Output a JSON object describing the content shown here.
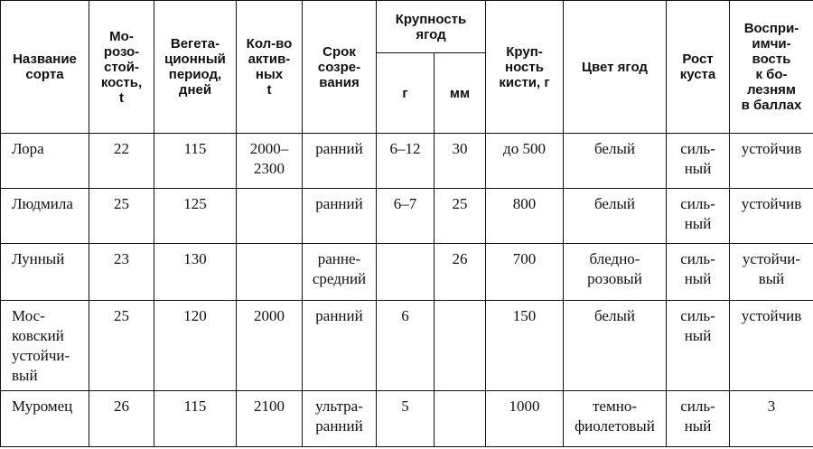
{
  "headers": {
    "name": "Название\nсорта",
    "frost": "Мо-\nрозо-\nстой-\nкость,\nt",
    "veg": "Вегета-\nционный\nпериод,\nдней",
    "active": "Кол-во\nактив-\nных\nt",
    "ripen": "Срок\nсозре-\nвания",
    "berry": "Крупность\nягод",
    "berry_g": "г",
    "berry_mm": "мм",
    "cluster": "Круп-\nность\nкисти, г",
    "color": "Цвет ягод",
    "growth": "Рост\nкуста",
    "disease": "Воспри-\nимчи-\nвость\nк бо-\nлезням\nв баллах"
  },
  "rows": [
    {
      "name": "Лора",
      "frost": "22",
      "veg": "115",
      "active": "2000–\n2300",
      "ripen": "ранний",
      "g": "6–12",
      "mm": "30",
      "cluster": "до 500",
      "color": "белый",
      "growth": "силь-\nный",
      "disease": "устойчив"
    },
    {
      "name": "Людмила",
      "frost": "25",
      "veg": "125",
      "active": "",
      "ripen": "ранний",
      "g": "6–7",
      "mm": "25",
      "cluster": "800",
      "color": "белый",
      "growth": "силь-\nный",
      "disease": "устойчив"
    },
    {
      "name": "Лунный",
      "frost": "23",
      "veg": "130",
      "active": "",
      "ripen": "ранне-\nсредний",
      "g": "",
      "mm": "26",
      "cluster": "700",
      "color": "бледно-\nрозовый",
      "growth": "силь-\nный",
      "disease": "устойчи-\nвый"
    },
    {
      "name": "Мос-\nковский\nустойчи-\nвый",
      "frost": "25",
      "veg": "120",
      "active": "2000",
      "ripen": "ранний",
      "g": "6",
      "mm": "",
      "cluster": "150",
      "color": "белый",
      "growth": "силь-\nный",
      "disease": "устойчив"
    },
    {
      "name": "Муромец",
      "frost": "26",
      "veg": "115",
      "active": "2100",
      "ripen": "ультра-\nранний",
      "g": "5",
      "mm": "",
      "cluster": "1000",
      "color": "темно-\nфиолетовый",
      "growth": "силь-\nный",
      "disease": "3"
    }
  ]
}
